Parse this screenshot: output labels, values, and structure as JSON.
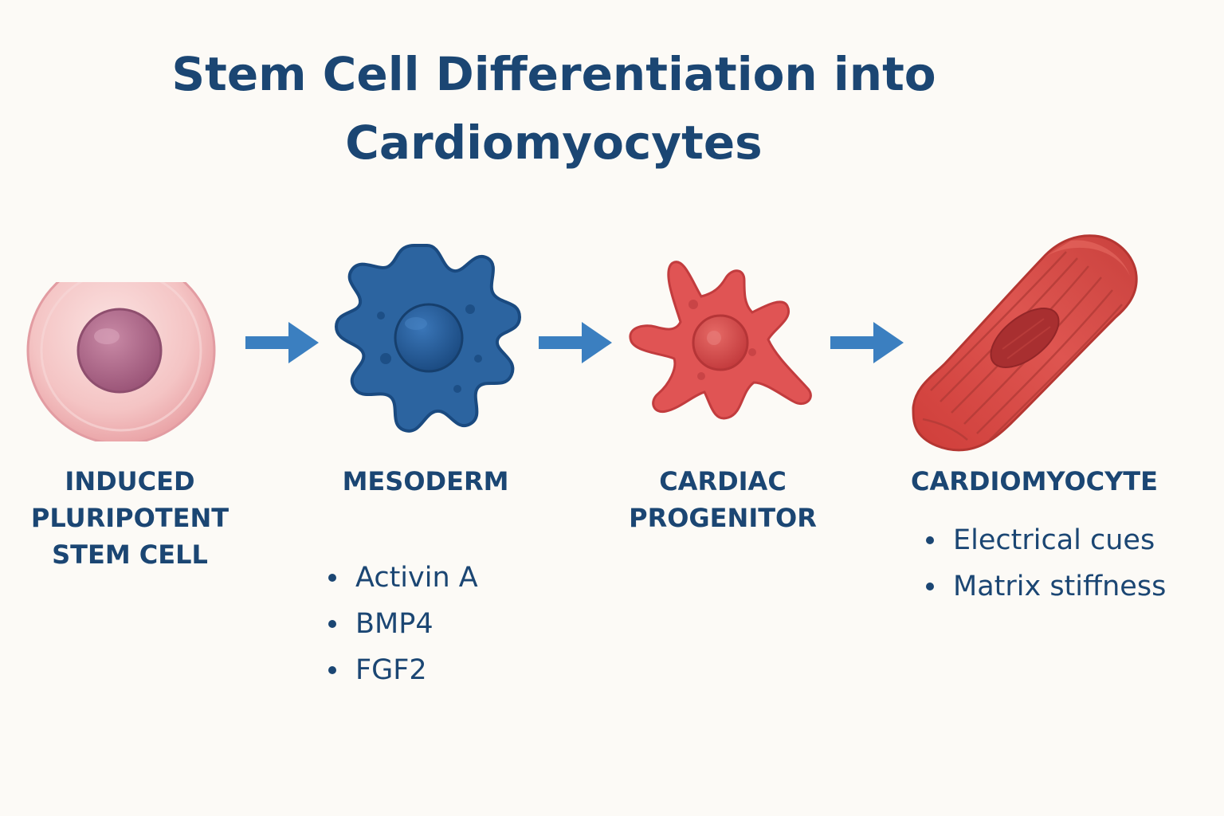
{
  "title": {
    "line1": "Stem Cell Differentiation into",
    "line2": "Cardiomyocytes"
  },
  "stages": [
    {
      "name": "ipsc",
      "label_lines": [
        "INDUCED",
        "PLURIPOTENT",
        "STEM CELL"
      ],
      "colors": {
        "body": "#f2b8bc",
        "nucleus": "#b06a8c"
      }
    },
    {
      "name": "mesoderm",
      "label_lines": [
        "MESODERM"
      ],
      "colors": {
        "body": "#2c64a0",
        "nucleus": "#1d4f86"
      }
    },
    {
      "name": "cardiac-progenitor",
      "label_lines": [
        "CARDIAC",
        "PROGENITOR"
      ],
      "colors": {
        "body": "#e05454",
        "nucleus": "#c63d3f"
      }
    },
    {
      "name": "cardiomyocyte",
      "label_lines": [
        "CARDIOMYOCYTE"
      ],
      "colors": {
        "body": "#d9463f",
        "nucleus": "#a82f30"
      }
    }
  ],
  "factors": {
    "mesoderm": [
      "Activin A",
      "BMP4",
      "FGF2"
    ],
    "cardiomyocyte": [
      "Electrical cues",
      "Matrix stiffness"
    ]
  },
  "arrow_color": "#3b7fc0",
  "text_color": "#1b4673"
}
